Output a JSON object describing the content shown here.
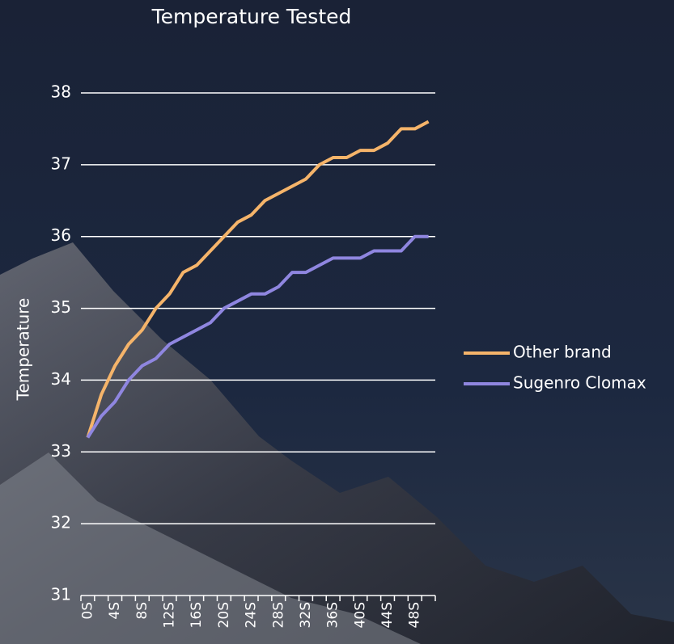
{
  "chart_data": {
    "type": "line",
    "title": "Temperature Tested",
    "y_label": "Temperature",
    "categories": [
      "0S",
      null,
      "4S",
      null,
      "8S",
      null,
      "12S",
      null,
      "16S",
      null,
      "20S",
      null,
      "24S",
      null,
      "28S",
      null,
      "32S",
      null,
      "36S",
      null,
      "40S",
      null,
      "44S",
      null,
      "48S",
      null
    ],
    "series": [
      {
        "name": "Other brand",
        "color": "#f5b46a",
        "values": [
          33.2,
          33.8,
          34.2,
          34.5,
          34.7,
          35.0,
          35.2,
          35.5,
          35.6,
          35.8,
          36.0,
          36.2,
          36.3,
          36.5,
          36.6,
          36.7,
          36.8,
          37.0,
          37.1,
          37.1,
          37.2,
          37.2,
          37.3,
          37.5,
          37.5,
          37.6
        ]
      },
      {
        "name": "Sugenro Clomax",
        "color": "#8f86e0",
        "values": [
          33.2,
          33.5,
          33.7,
          34.0,
          34.2,
          34.3,
          34.5,
          34.6,
          34.7,
          34.8,
          35.0,
          35.1,
          35.2,
          35.2,
          35.3,
          35.5,
          35.5,
          35.6,
          35.7,
          35.7,
          35.7,
          35.8,
          35.8,
          35.8,
          36.0,
          36.0
        ]
      }
    ],
    "ylim": [
      31,
      38
    ],
    "yticks": [
      31,
      32,
      33,
      34,
      35,
      36,
      37,
      38
    ],
    "grid": true,
    "legend": "right"
  }
}
